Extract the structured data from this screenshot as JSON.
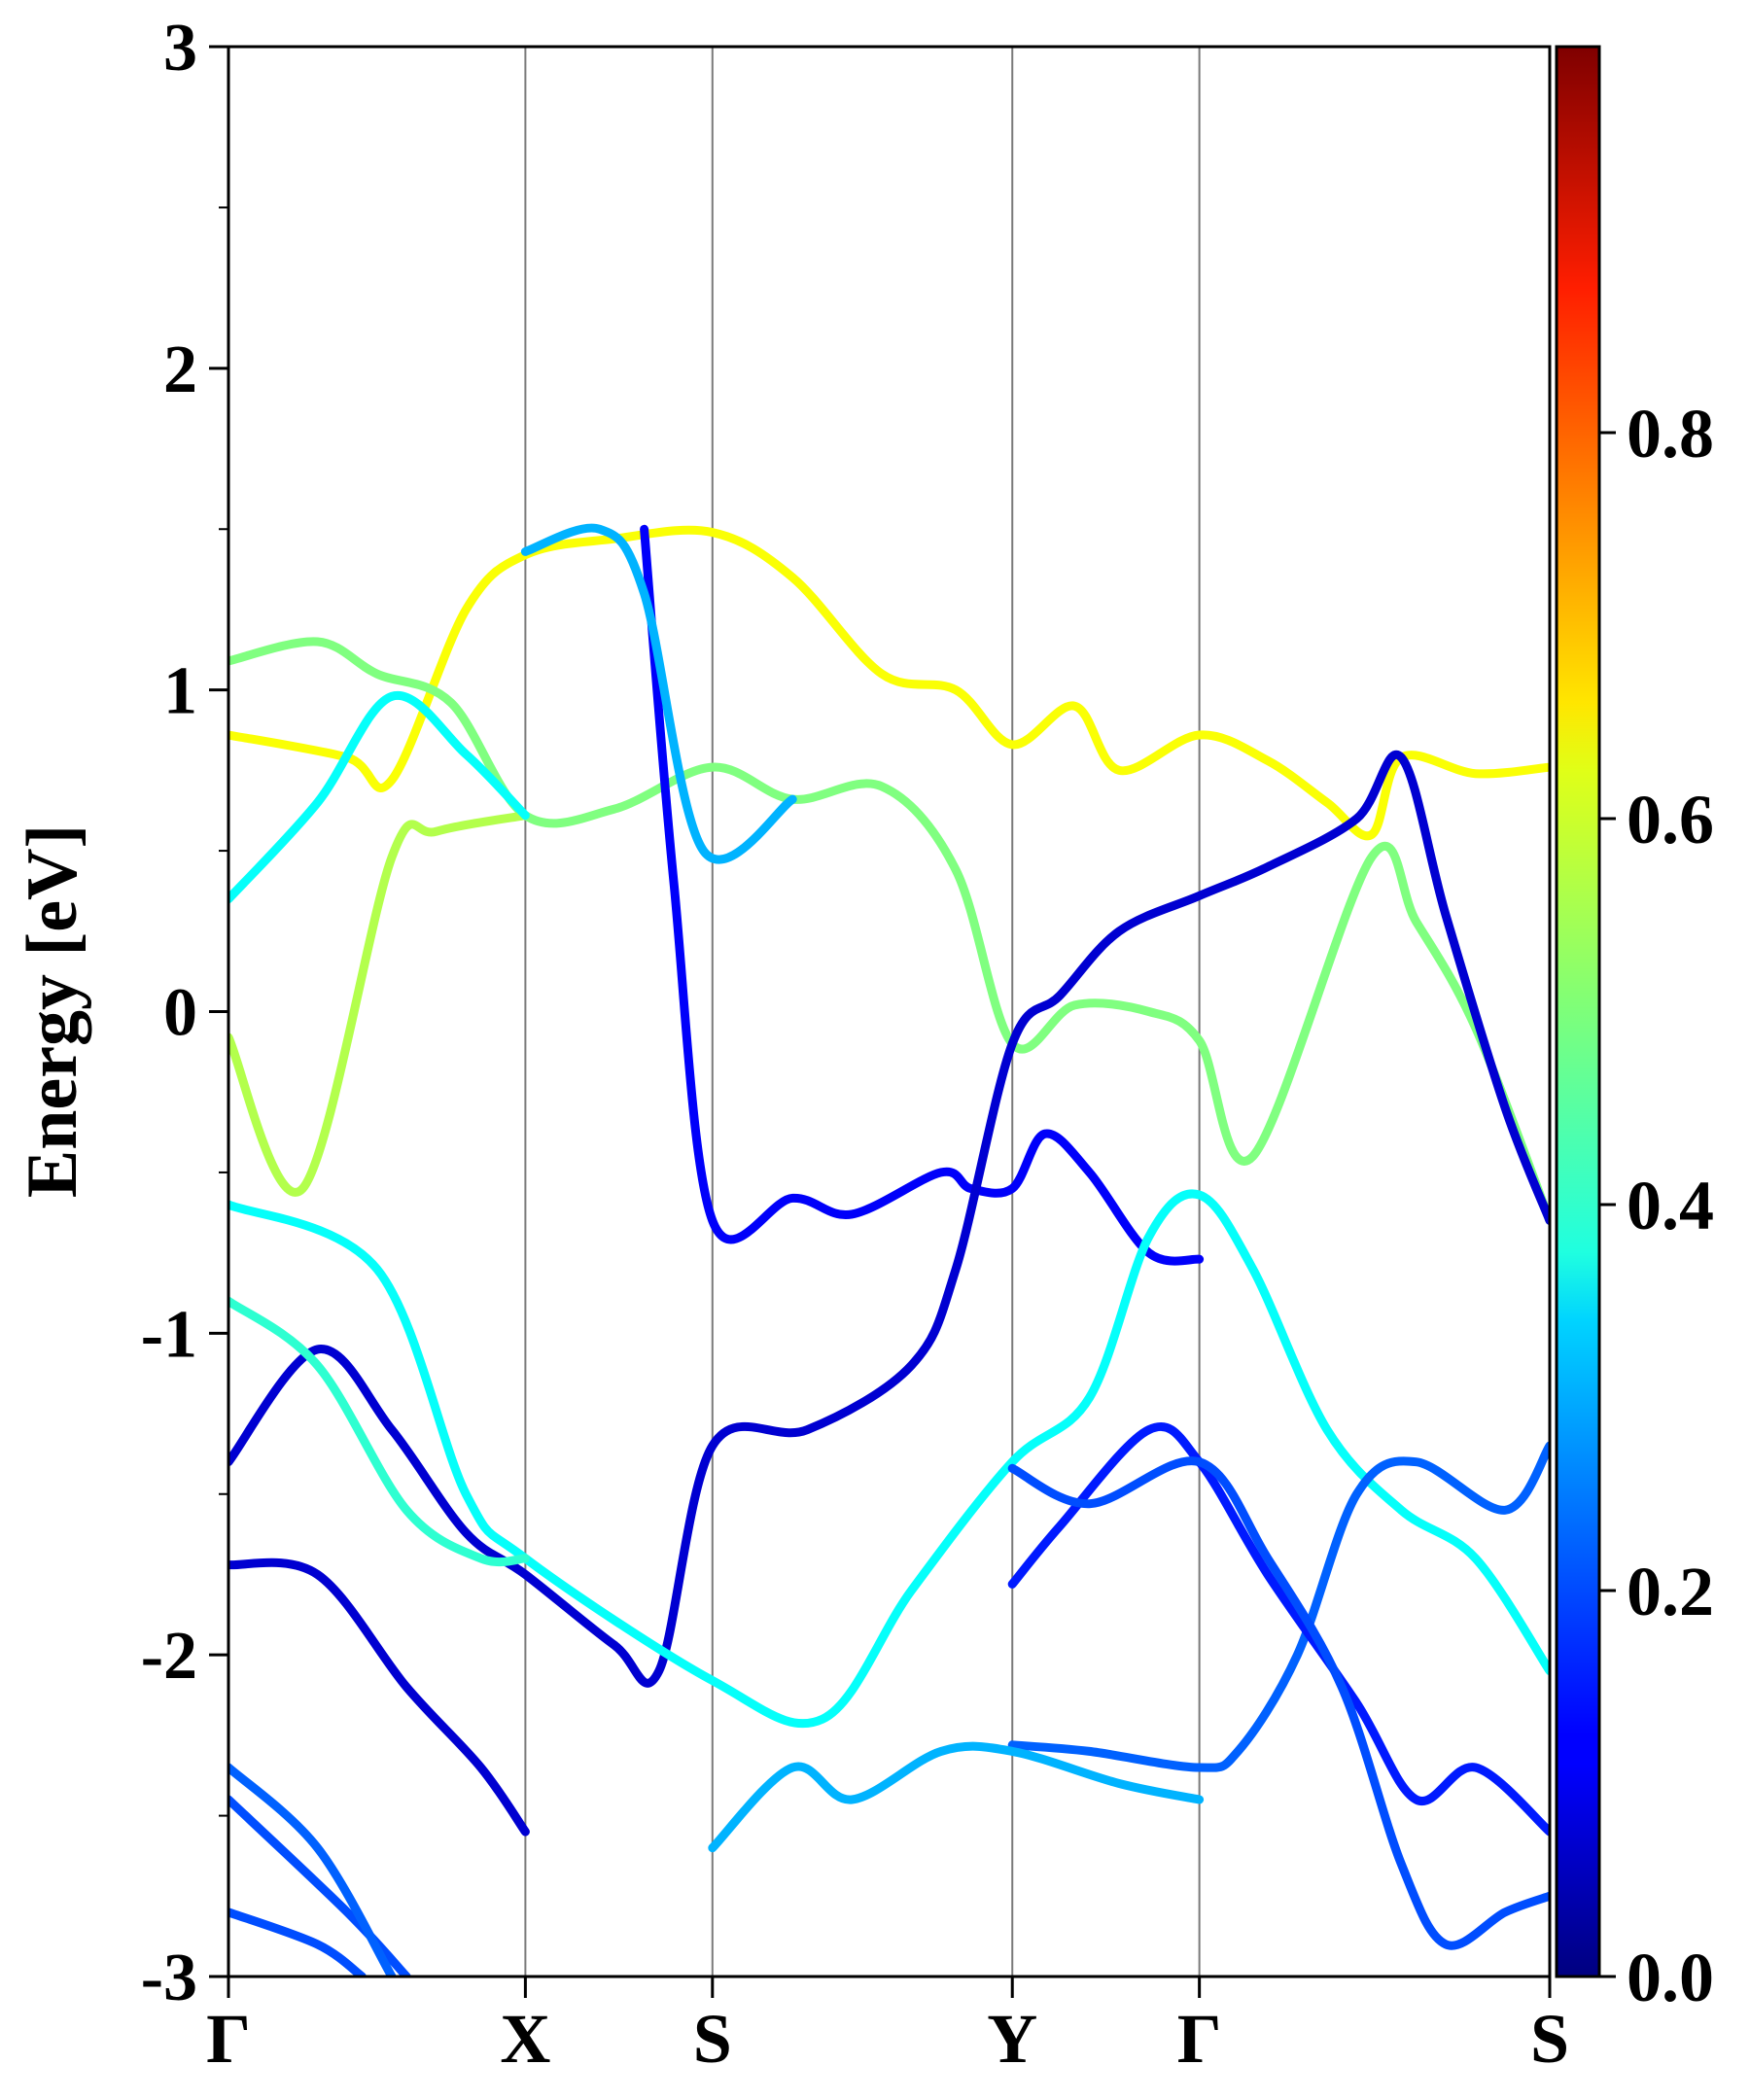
{
  "chart_data": {
    "type": "line",
    "title": "",
    "xlabel": "",
    "ylabel": "Energy [eV]",
    "ylim": [
      -3,
      3
    ],
    "yticks": [
      -3,
      -2,
      -1,
      0,
      1,
      2,
      3
    ],
    "kpath": [
      {
        "label": "Γ",
        "x": 0.0
      },
      {
        "label": "X",
        "x": 1.0
      },
      {
        "label": "S",
        "x": 1.63
      },
      {
        "label": "Y",
        "x": 2.64
      },
      {
        "label": "Γ",
        "x": 3.27
      },
      {
        "label": "S",
        "x": 4.45
      }
    ],
    "colorbar": {
      "colormap": "jet",
      "range": [
        0.0,
        1.0
      ],
      "ticks": [
        "0.0",
        "0.2",
        "0.4",
        "0.6",
        "0.8"
      ]
    },
    "series": [
      {
        "color_value": 0.62,
        "points": [
          [
            0,
            0.86
          ],
          [
            0.4,
            0.79
          ],
          [
            0.55,
            0.72
          ],
          [
            0.8,
            1.25
          ],
          [
            1.0,
            1.42
          ],
          [
            1.3,
            1.47
          ],
          [
            1.63,
            1.49
          ],
          [
            1.9,
            1.35
          ],
          [
            2.2,
            1.05
          ],
          [
            2.45,
            1.0
          ],
          [
            2.64,
            0.83
          ],
          [
            2.85,
            0.95
          ],
          [
            3.0,
            0.75
          ],
          [
            3.27,
            0.86
          ],
          [
            3.5,
            0.78
          ],
          [
            3.7,
            0.65
          ],
          [
            3.85,
            0.55
          ],
          [
            3.95,
            0.79
          ],
          [
            4.2,
            0.74
          ],
          [
            4.45,
            0.76
          ]
        ]
      },
      {
        "color_value": 0.5,
        "points": [
          [
            0,
            1.09
          ],
          [
            0.3,
            1.15
          ],
          [
            0.5,
            1.05
          ],
          [
            0.75,
            0.96
          ],
          [
            1.0,
            0.61
          ],
          [
            1.3,
            0.63
          ],
          [
            1.63,
            0.76
          ],
          [
            1.9,
            0.66
          ],
          [
            2.2,
            0.7
          ],
          [
            2.45,
            0.44
          ],
          [
            2.64,
            -0.1
          ],
          [
            2.85,
            0.02
          ],
          [
            3.1,
            0.0
          ],
          [
            3.27,
            -0.09
          ],
          [
            3.45,
            -0.45
          ],
          [
            3.85,
            0.48
          ],
          [
            4.0,
            0.28
          ],
          [
            4.2,
            -0.05
          ],
          [
            4.45,
            -0.65
          ]
        ]
      },
      {
        "color_value": 0.55,
        "points": [
          [
            0,
            -0.08
          ],
          [
            0.25,
            -0.55
          ],
          [
            0.55,
            0.48
          ],
          [
            0.7,
            0.56
          ],
          [
            1.0,
            0.61
          ]
        ]
      },
      {
        "color_value": 0.38,
        "points": [
          [
            0,
            0.35
          ],
          [
            0.3,
            0.65
          ],
          [
            0.55,
            0.98
          ],
          [
            0.8,
            0.8
          ],
          [
            1.0,
            0.61
          ]
        ]
      },
      {
        "color_value": 0.12,
        "points": [
          [
            1.4,
            1.5
          ],
          [
            1.5,
            0.4
          ],
          [
            1.63,
            -0.65
          ],
          [
            1.9,
            -0.58
          ],
          [
            2.1,
            -0.63
          ],
          [
            2.4,
            -0.5
          ],
          [
            2.5,
            -0.55
          ],
          [
            2.64,
            -0.55
          ],
          [
            2.75,
            -0.38
          ],
          [
            2.9,
            -0.5
          ],
          [
            3.1,
            -0.75
          ],
          [
            3.27,
            -0.77
          ]
        ]
      },
      {
        "color_value": 0.3,
        "points": [
          [
            1.0,
            1.43
          ],
          [
            1.25,
            1.5
          ],
          [
            1.4,
            1.3
          ],
          [
            1.6,
            0.5
          ],
          [
            1.9,
            0.66
          ]
        ]
      },
      {
        "color_value": 0.08,
        "points": [
          [
            0,
            -1.4
          ],
          [
            0.3,
            -1.05
          ],
          [
            0.55,
            -1.3
          ],
          [
            0.8,
            -1.62
          ],
          [
            1.0,
            -1.75
          ],
          [
            1.3,
            -1.97
          ],
          [
            1.45,
            -2.05
          ],
          [
            1.63,
            -1.35
          ],
          [
            1.95,
            -1.3
          ],
          [
            2.3,
            -1.1
          ],
          [
            2.45,
            -0.8
          ],
          [
            2.64,
            -0.1
          ],
          [
            2.8,
            0.05
          ],
          [
            3.0,
            0.25
          ],
          [
            3.27,
            0.36
          ],
          [
            3.5,
            0.45
          ],
          [
            3.8,
            0.6
          ],
          [
            3.95,
            0.79
          ],
          [
            4.1,
            0.3
          ],
          [
            4.3,
            -0.3
          ],
          [
            4.45,
            -0.65
          ]
        ]
      },
      {
        "color_value": 0.38,
        "points": [
          [
            0,
            -0.6
          ],
          [
            0.5,
            -0.8
          ],
          [
            0.8,
            -1.5
          ],
          [
            1.0,
            -1.7
          ],
          [
            1.63,
            -2.08
          ],
          [
            2.0,
            -2.2
          ],
          [
            2.3,
            -1.8
          ],
          [
            2.64,
            -1.4
          ],
          [
            2.9,
            -1.2
          ],
          [
            3.1,
            -0.7
          ],
          [
            3.27,
            -0.57
          ],
          [
            3.45,
            -0.8
          ],
          [
            3.7,
            -1.3
          ],
          [
            3.95,
            -1.55
          ],
          [
            4.2,
            -1.7
          ],
          [
            4.45,
            -2.05
          ]
        ]
      },
      {
        "color_value": 0.42,
        "points": [
          [
            0,
            -0.9
          ],
          [
            0.3,
            -1.1
          ],
          [
            0.6,
            -1.55
          ],
          [
            0.85,
            -1.7
          ],
          [
            1.0,
            -1.7
          ]
        ]
      },
      {
        "color_value": 0.08,
        "points": [
          [
            0,
            -1.72
          ],
          [
            0.3,
            -1.75
          ],
          [
            0.6,
            -2.1
          ],
          [
            0.85,
            -2.35
          ],
          [
            1.0,
            -2.55
          ]
        ]
      },
      {
        "color_value": 0.22,
        "points": [
          [
            2.64,
            -2.28
          ],
          [
            2.9,
            -2.3
          ],
          [
            3.27,
            -2.35
          ],
          [
            3.4,
            -2.3
          ],
          [
            3.6,
            -2.0
          ],
          [
            3.8,
            -1.5
          ],
          [
            4.0,
            -1.4
          ],
          [
            4.3,
            -1.55
          ],
          [
            4.45,
            -1.35
          ]
        ]
      },
      {
        "color_value": 0.15,
        "points": [
          [
            2.64,
            -1.78
          ],
          [
            2.8,
            -1.6
          ],
          [
            3.1,
            -1.3
          ],
          [
            3.27,
            -1.4
          ],
          [
            3.5,
            -1.75
          ],
          [
            3.8,
            -2.15
          ],
          [
            4.0,
            -2.45
          ],
          [
            4.2,
            -2.35
          ],
          [
            4.45,
            -2.55
          ]
        ]
      },
      {
        "color_value": 0.2,
        "points": [
          [
            2.64,
            -1.42
          ],
          [
            2.9,
            -1.53
          ],
          [
            3.27,
            -1.4
          ],
          [
            3.5,
            -1.7
          ],
          [
            3.75,
            -2.1
          ],
          [
            3.95,
            -2.65
          ],
          [
            4.1,
            -2.9
          ],
          [
            4.3,
            -2.8
          ],
          [
            4.45,
            -2.75
          ]
        ]
      },
      {
        "color_value": 0.3,
        "points": [
          [
            1.63,
            -2.6
          ],
          [
            1.9,
            -2.35
          ],
          [
            2.1,
            -2.45
          ],
          [
            2.4,
            -2.3
          ],
          [
            2.64,
            -2.3
          ],
          [
            3.0,
            -2.4
          ],
          [
            3.27,
            -2.45
          ]
        ]
      },
      {
        "color_value": 0.2,
        "points": [
          [
            0,
            -2.45
          ],
          [
            0.4,
            -2.8
          ],
          [
            0.6,
            -3.0
          ]
        ]
      },
      {
        "color_value": 0.22,
        "points": [
          [
            0,
            -2.35
          ],
          [
            0.3,
            -2.6
          ],
          [
            0.55,
            -3.0
          ]
        ]
      },
      {
        "color_value": 0.2,
        "points": [
          [
            0,
            -2.8
          ],
          [
            0.3,
            -2.9
          ],
          [
            0.45,
            -3.0
          ]
        ]
      }
    ]
  }
}
